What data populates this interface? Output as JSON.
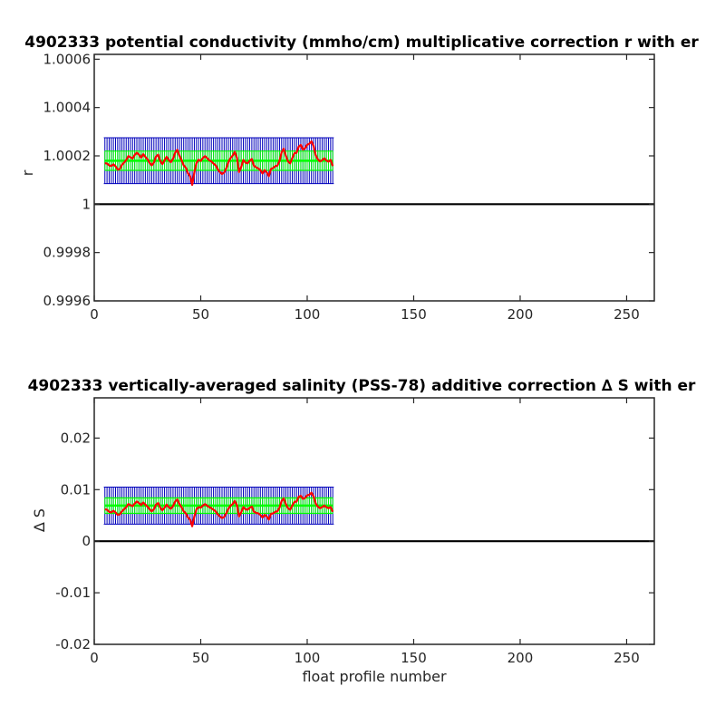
{
  "chart_data": [
    {
      "type": "line",
      "title": "4902333 potential conductivity (mmho/cm) multiplicative correction r with er",
      "xlabel": "",
      "ylabel": "r",
      "xlim": [
        0,
        263
      ],
      "ylim": [
        0.9996,
        1.00062
      ],
      "x_ticks": [
        0,
        50,
        100,
        150,
        200,
        250
      ],
      "x_tick_labels": [
        "0",
        "50",
        "100",
        "150",
        "200",
        "250"
      ],
      "y_ticks": [
        0.9996,
        0.9998,
        1.0,
        1.0002,
        1.0004,
        1.0006
      ],
      "y_tick_labels": [
        "0.9996",
        "0.9998",
        "1",
        "1.0002",
        "1.0004",
        "1.0006"
      ],
      "reference_line": 1.0,
      "x_start": 5,
      "x_step": 1,
      "series": [
        {
          "name": "",
          "role": "correction",
          "color": "#ff0000",
          "values": [
            1.00017,
            1.000168,
            1.000161,
            1.000158,
            1.000165,
            1.000157,
            1.000143,
            1.000146,
            1.000163,
            1.000172,
            1.000183,
            1.000199,
            1.000194,
            1.000189,
            1.000204,
            1.000213,
            1.000205,
            1.000193,
            1.000207,
            1.000196,
            1.000186,
            1.000171,
            1.000161,
            1.000172,
            1.000197,
            1.000205,
            1.000179,
            1.000166,
            1.000181,
            1.000196,
            1.000183,
            1.000174,
            1.000188,
            1.000213,
            1.000225,
            1.000201,
            1.000182,
            1.000161,
            1.000151,
            1.000128,
            1.000116,
            1.00008,
            1.000132,
            1.000171,
            1.000184,
            1.000179,
            1.000191,
            1.000199,
            1.000191,
            1.000182,
            1.000177,
            1.000168,
            1.000161,
            1.000145,
            1.000133,
            1.000125,
            1.000131,
            1.000149,
            1.000174,
            1.000191,
            1.000201,
            1.000216,
            1.000193,
            1.000133,
            1.000154,
            1.000183,
            1.000172,
            1.000169,
            1.00018,
            1.000187,
            1.000159,
            1.000153,
            1.000148,
            1.000141,
            1.000127,
            1.000141,
            1.000132,
            1.000116,
            1.000146,
            1.00015,
            1.000157,
            1.00016,
            1.000179,
            1.000215,
            1.00023,
            1.0002,
            1.000177,
            1.000169,
            1.000191,
            1.000211,
            1.000213,
            1.000238,
            1.000245,
            1.000226,
            1.000232,
            1.000246,
            1.00025,
            1.00026,
            1.000241,
            1.000203,
            1.000186,
            1.000177,
            1.000182,
            1.00019,
            1.000181,
            1.000176,
            1.000183,
            1.000158
          ]
        },
        {
          "name": "",
          "role": "mean",
          "color": "#00ff00",
          "values": [
            1.00018
          ]
        },
        {
          "name": "",
          "role": "error_bars",
          "color": "#0000bb",
          "half_width": 9.5e-05
        },
        {
          "name": "",
          "role": "inner_error_bars",
          "color": "#00ff00",
          "half_width": 4e-05
        }
      ]
    },
    {
      "type": "line",
      "title": "4902333 vertically-averaged salinity (PSS-78) additive correction ∆ S with er",
      "xlabel": "float profile number",
      "ylabel": "∆ S",
      "xlim": [
        0,
        263
      ],
      "ylim": [
        -0.02,
        0.0278
      ],
      "x_ticks": [
        0,
        50,
        100,
        150,
        200,
        250
      ],
      "x_tick_labels": [
        "0",
        "50",
        "100",
        "150",
        "200",
        "250"
      ],
      "y_ticks": [
        -0.02,
        -0.01,
        0,
        0.01,
        0.02
      ],
      "y_tick_labels": [
        "-0.02",
        "-0.01",
        "0",
        "0.01",
        "0.02"
      ],
      "reference_line": 0,
      "x_start": 5,
      "x_step": 1,
      "series": [
        {
          "name": "",
          "role": "correction",
          "color": "#ff0000",
          "values": [
            0.0062,
            0.0061,
            0.0057,
            0.0056,
            0.0059,
            0.0056,
            0.0051,
            0.0052,
            0.0058,
            0.0062,
            0.0066,
            0.0072,
            0.007,
            0.0068,
            0.0073,
            0.0077,
            0.0074,
            0.007,
            0.0075,
            0.0071,
            0.0067,
            0.0062,
            0.0058,
            0.0062,
            0.0071,
            0.0074,
            0.0065,
            0.006,
            0.0065,
            0.0071,
            0.0066,
            0.0063,
            0.0068,
            0.0077,
            0.0081,
            0.0072,
            0.0066,
            0.0058,
            0.0054,
            0.0046,
            0.0042,
            0.0029,
            0.0048,
            0.0062,
            0.0066,
            0.0065,
            0.0069,
            0.0072,
            0.0069,
            0.0066,
            0.0064,
            0.0061,
            0.0058,
            0.0052,
            0.0048,
            0.0045,
            0.0047,
            0.0054,
            0.0063,
            0.0069,
            0.0072,
            0.0078,
            0.007,
            0.0048,
            0.0056,
            0.0066,
            0.0062,
            0.0061,
            0.0065,
            0.0067,
            0.0057,
            0.0055,
            0.0054,
            0.0051,
            0.0046,
            0.0051,
            0.0048,
            0.0042,
            0.0053,
            0.0054,
            0.0057,
            0.0058,
            0.0065,
            0.0078,
            0.0083,
            0.0072,
            0.0064,
            0.0061,
            0.0069,
            0.0076,
            0.0077,
            0.0086,
            0.0088,
            0.0082,
            0.0084,
            0.0089,
            0.009,
            0.0094,
            0.0087,
            0.0073,
            0.0067,
            0.0064,
            0.0066,
            0.0069,
            0.0066,
            0.0064,
            0.0066,
            0.0057
          ]
        },
        {
          "name": "",
          "role": "mean",
          "color": "#00ff00",
          "values": [
            0.0069
          ]
        },
        {
          "name": "",
          "role": "error_bars",
          "color": "#0000bb",
          "half_width": 0.0036
        },
        {
          "name": "",
          "role": "inner_error_bars",
          "color": "#00ff00",
          "half_width": 0.0015
        }
      ]
    }
  ]
}
